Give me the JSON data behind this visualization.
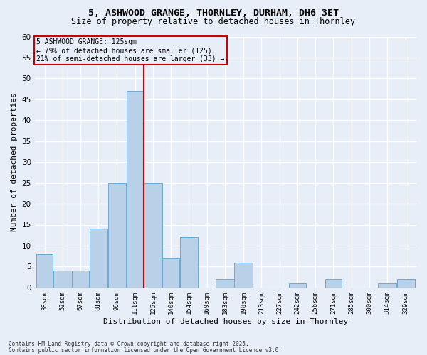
{
  "title1": "5, ASHWOOD GRANGE, THORNLEY, DURHAM, DH6 3ET",
  "title2": "Size of property relative to detached houses in Thornley",
  "xlabel": "Distribution of detached houses by size in Thornley",
  "ylabel": "Number of detached properties",
  "bin_labels": [
    "38sqm",
    "52sqm",
    "67sqm",
    "81sqm",
    "96sqm",
    "111sqm",
    "125sqm",
    "140sqm",
    "154sqm",
    "169sqm",
    "183sqm",
    "198sqm",
    "213sqm",
    "227sqm",
    "242sqm",
    "256sqm",
    "271sqm",
    "285sqm",
    "300sqm",
    "314sqm",
    "329sqm"
  ],
  "bin_edges": [
    38,
    52,
    67,
    81,
    96,
    111,
    125,
    140,
    154,
    169,
    183,
    198,
    213,
    227,
    242,
    256,
    271,
    285,
    300,
    314,
    329
  ],
  "bar_heights": [
    8,
    4,
    4,
    14,
    25,
    47,
    25,
    7,
    12,
    0,
    2,
    6,
    0,
    0,
    1,
    0,
    2,
    0,
    0,
    1,
    2
  ],
  "bar_color": "#b8d0e8",
  "bar_edge_color": "#6aaad4",
  "property_size": 125,
  "red_line_color": "#cc0000",
  "annotation_line1": "5 ASHWOOD GRANGE: 125sqm",
  "annotation_line2": "← 79% of detached houses are smaller (125)",
  "annotation_line3": "21% of semi-detached houses are larger (33) →",
  "background_color": "#e8eef8",
  "grid_color": "#ffffff",
  "ylim": [
    0,
    60
  ],
  "yticks": [
    0,
    5,
    10,
    15,
    20,
    25,
    30,
    35,
    40,
    45,
    50,
    55,
    60
  ],
  "footer1": "Contains HM Land Registry data © Crown copyright and database right 2025.",
  "footer2": "Contains public sector information licensed under the Open Government Licence v3.0."
}
